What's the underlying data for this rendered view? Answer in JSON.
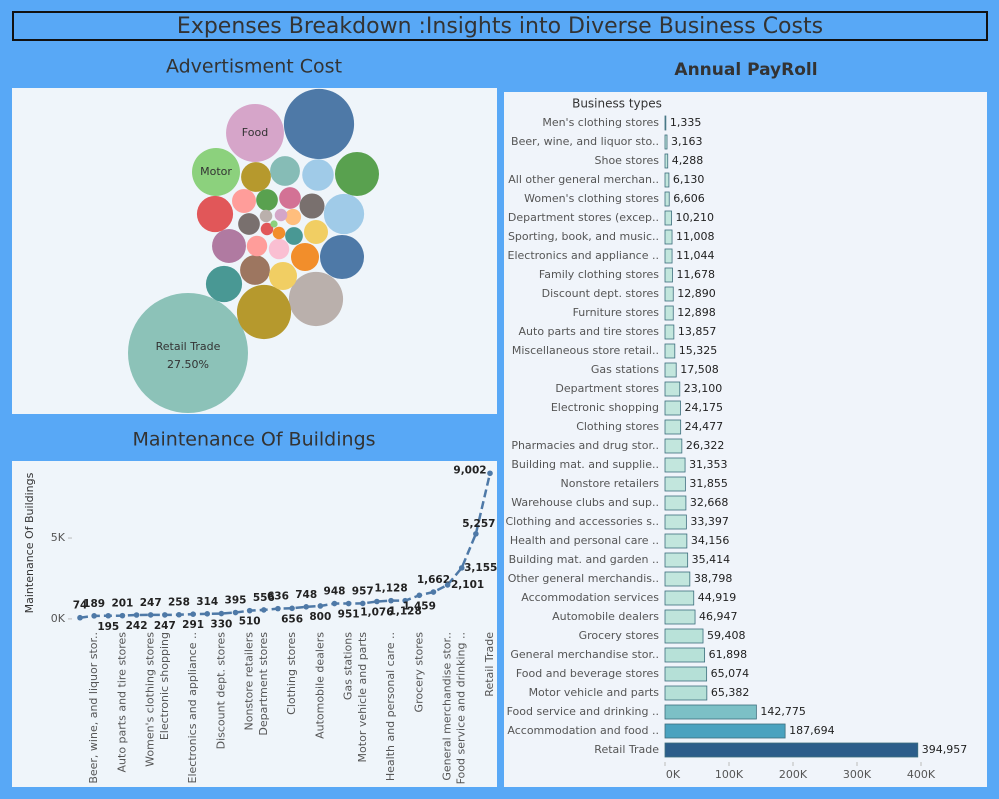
{
  "header": {
    "title": "Expenses Breakdown :Insights into Diverse Business Costs"
  },
  "chart_data": [
    {
      "type": "bubble",
      "title": "Advertisment Cost",
      "categories": [
        "Retail Trade",
        "Food",
        null,
        "Motor",
        null,
        null,
        null,
        null,
        null,
        null,
        null,
        null,
        null,
        null,
        null,
        null,
        null,
        null,
        null,
        null,
        null,
        null,
        null,
        null,
        null,
        null,
        null,
        null,
        null,
        null,
        null,
        null,
        null
      ],
      "values": [
        27.5,
        6.4,
        9.4,
        4.4,
        3.7,
        3.1,
        3.7,
        5.6,
        5.6,
        2.5,
        1.7,
        1.5,
        1.5,
        2.2,
        2.5,
        1.9,
        1.7,
        1.7,
        1.1,
        0.9,
        0.9,
        1.2,
        1.1,
        0.8,
        0.8,
        0.9,
        0.6,
        0.5,
        0.3,
        0.3,
        0.3,
        0.1,
        0.3
      ],
      "value_labels": [
        "27.50%",
        null,
        null,
        null,
        null,
        null,
        null,
        null,
        null,
        null,
        null,
        null,
        null,
        null,
        null,
        null,
        null,
        null,
        null,
        null,
        null,
        null,
        null,
        null,
        null,
        null,
        null,
        null,
        null,
        null,
        null,
        null,
        null
      ],
      "colors": [
        "#8cc2b8",
        "#d6a5c9",
        "#4e79a7",
        "#8cd17d",
        "#59a14f",
        "#a0cbe8",
        "#4e79a7",
        "#bab0ac",
        "#b6992d",
        "#499894",
        "#9d7660",
        "#f1ce63",
        "#f28e2b",
        "#b07aa1",
        "#e15759",
        "#a0cbe8",
        "#86bcb6",
        "#b6992d",
        "#ff9d9a",
        "#59a14f",
        "#d37295",
        "#79706e",
        "#f1ce63",
        "#ff9d9a",
        "#fabfd2",
        "#79706e",
        "#499894",
        "#ffbe7d",
        "#e15759",
        "#f28e2b",
        "#bab0ac",
        "#8cd17d",
        "#d4a6c8"
      ]
    },
    {
      "type": "line",
      "title": "Maintenance Of Buildings",
      "y_label": "Maintenance Of Buildings",
      "categories": [
        null,
        "Beer, wine, and liquor stor..",
        null,
        "Auto parts and tire stores",
        null,
        "Women's clothing stores",
        "Electronic shopping",
        null,
        "Electronics and appliance ..",
        null,
        "Discount dept. stores",
        null,
        "Nonstore retailers",
        "Department stores",
        null,
        "Clothing stores",
        null,
        "Automobile dealers",
        null,
        "Gas stations",
        "Motor vehicle and parts",
        null,
        "Health and personal care ..",
        null,
        "Grocery stores",
        null,
        "General merchandise stor..",
        "Food service and drinking ..",
        null,
        "Retail Trade"
      ],
      "values": [
        74,
        189,
        195,
        201,
        242,
        247,
        247,
        258,
        291,
        314,
        330,
        395,
        510,
        556,
        636,
        656,
        748,
        800,
        948,
        951,
        957,
        1076,
        1128,
        1128,
        1459,
        1662,
        2101,
        3155,
        5257,
        9002
      ],
      "value_labels": [
        "74",
        "189",
        "195",
        "201",
        "242",
        "247",
        "247",
        "258",
        "291",
        "314",
        "330",
        "395",
        "510",
        "556",
        "636",
        "656",
        "748",
        "800",
        "948",
        "951",
        "957",
        "1,076",
        "1,128",
        "1,128",
        "1,459",
        "1,662",
        "2,101",
        "3,155",
        "5,257",
        "9,002"
      ],
      "color": "#4e79a7",
      "ylim": [
        -500,
        9700
      ],
      "yticks": [
        {
          "value": 0,
          "label": "0K"
        },
        {
          "value": 5000,
          "label": "5K"
        }
      ],
      "grid": false
    },
    {
      "type": "bar",
      "orientation": "horizontal",
      "title": "Annual PayRoll",
      "y_label": "Business types",
      "categories": [
        "Men's clothing stores",
        "Beer, wine, and liquor sto..",
        "Shoe stores",
        "All other general merchan..",
        "Women's clothing stores",
        "Department stores (excep..",
        "Sporting, book, and music..",
        "Electronics and appliance ..",
        "Family clothing stores",
        "Discount dept. stores",
        "Furniture stores",
        "Auto parts and tire stores",
        "Miscellaneous store retail..",
        "Gas stations",
        "Department stores",
        "Electronic shopping",
        "Clothing stores",
        "Pharmacies and drug stor..",
        "Building mat. and supplie..",
        "Nonstore retailers",
        "Warehouse clubs and sup..",
        "Clothing and accessories s..",
        "Health and personal care ..",
        "Building mat. and garden ..",
        "Other general merchandis..",
        "Accommodation services",
        "Automobile dealers",
        "Grocery stores",
        "General merchandise stor..",
        "Food and beverage stores",
        "Motor vehicle and parts",
        "Food service and drinking ..",
        "Accommodation and food ..",
        "Retail Trade"
      ],
      "values": [
        1335,
        3163,
        4288,
        6130,
        6606,
        10210,
        11008,
        11044,
        11678,
        12890,
        12898,
        13857,
        15325,
        17508,
        23100,
        24175,
        24477,
        26322,
        31353,
        31855,
        32668,
        33397,
        34156,
        35414,
        38798,
        44919,
        46947,
        59408,
        61898,
        65074,
        65382,
        142775,
        187694,
        394957
      ],
      "value_labels": [
        "1,335",
        "3,163",
        "4,288",
        "6,130",
        "6,606",
        "10,210",
        "11,008",
        "11,044",
        "11,678",
        "12,890",
        "12,898",
        "13,857",
        "15,325",
        "17,508",
        "23,100",
        "24,175",
        "24,477",
        "26,322",
        "31,353",
        "31,855",
        "32,668",
        "33,397",
        "34,156",
        "35,414",
        "38,798",
        "44,919",
        "46,947",
        "59,408",
        "61,898",
        "65,074",
        "65,382",
        "142,775",
        "187,694",
        "394,957"
      ],
      "colors": [
        "#c2e6dd",
        "#c2e6dd",
        "#c2e6dd",
        "#c2e6dd",
        "#c2e6dd",
        "#c2e6dd",
        "#c2e6dd",
        "#c2e6dd",
        "#c2e6dd",
        "#c2e6dd",
        "#c2e6dd",
        "#c2e6dd",
        "#c2e6dd",
        "#c2e6dd",
        "#c2e6dd",
        "#c2e6dd",
        "#c2e6dd",
        "#c2e6dd",
        "#c2e6dd",
        "#c2e6dd",
        "#c2e6dd",
        "#c2e6dd",
        "#c2e6dd",
        "#c2e6dd",
        "#c2e6dd",
        "#c0e5dc",
        "#bfe4db",
        "#b9e2d9",
        "#b7e1d8",
        "#b5e0d7",
        "#b5e0d7",
        "#7cc0c6",
        "#4aa2bf",
        "#2c5d8a"
      ],
      "xlim": [
        0,
        500000
      ],
      "xticks": [
        {
          "value": 0,
          "label": "0K"
        },
        {
          "value": 100000,
          "label": "100K"
        },
        {
          "value": 200000,
          "label": "200K"
        },
        {
          "value": 300000,
          "label": "300K"
        },
        {
          "value": 400000,
          "label": "400K"
        }
      ]
    }
  ]
}
